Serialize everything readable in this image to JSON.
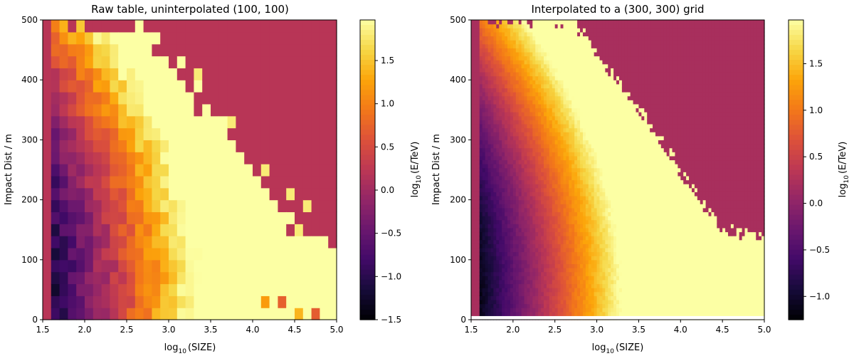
{
  "chart_data": [
    {
      "type": "heatmap",
      "title": "Raw table, uninterpolated (100, 100)",
      "xlabel_base": "log",
      "xlabel_sub": "10",
      "xlabel_rest": "(SIZE)",
      "ylabel": "Impact Dist / m",
      "xlim": [
        1.5,
        5.0
      ],
      "ylim": [
        0,
        500
      ],
      "xticks": [
        "1.5",
        "2.0",
        "2.5",
        "3.0",
        "3.5",
        "4.0",
        "4.5",
        "5.0"
      ],
      "yticks": [
        "0",
        "100",
        "200",
        "300",
        "400",
        "500"
      ],
      "colorbar": {
        "label_base": "log",
        "label_sub": "10",
        "label_rest": "(E/TeV)",
        "range": [
          -1.5,
          1.97
        ],
        "ticks": [
          "−1.5",
          "−1.0",
          "−0.5",
          "0.0",
          "0.5",
          "1.0",
          "1.5"
        ],
        "colormap": "inferno"
      },
      "field": {
        "fill_value": 0.2,
        "valid_x_min": 1.6,
        "boundary": {
          "x": [
            1.6,
            2.7,
            3.5,
            4.0,
            4.5,
            5.0
          ],
          "y": [
            500,
            500,
            350,
            250,
            150,
            140
          ]
        }
      }
    },
    {
      "type": "heatmap",
      "title": "Interpolated to a (300, 300) grid",
      "xlabel_base": "log",
      "xlabel_sub": "10",
      "xlabel_rest": "(SIZE)",
      "ylabel": "Impact Dist / m",
      "xlim": [
        1.5,
        5.0
      ],
      "ylim": [
        0,
        500
      ],
      "xticks": [
        "1.5",
        "2.0",
        "2.5",
        "3.0",
        "3.5",
        "4.0",
        "4.5",
        "5.0"
      ],
      "yticks": [
        "0",
        "100",
        "200",
        "300",
        "400",
        "500"
      ],
      "colorbar": {
        "label_base": "log",
        "label_sub": "10",
        "label_rest": "(E/TeV)",
        "range": [
          -1.25,
          1.97
        ],
        "ticks": [
          "−1.0",
          "−0.5",
          "0.0",
          "0.5",
          "1.0",
          "1.5"
        ],
        "colormap": "inferno"
      },
      "field": {
        "fill_value": 0.2,
        "valid_x_min": 1.6,
        "boundary": {
          "x": [
            1.6,
            2.7,
            3.5,
            4.0,
            4.5,
            5.0
          ],
          "y": [
            500,
            500,
            350,
            250,
            150,
            140
          ]
        }
      }
    }
  ]
}
